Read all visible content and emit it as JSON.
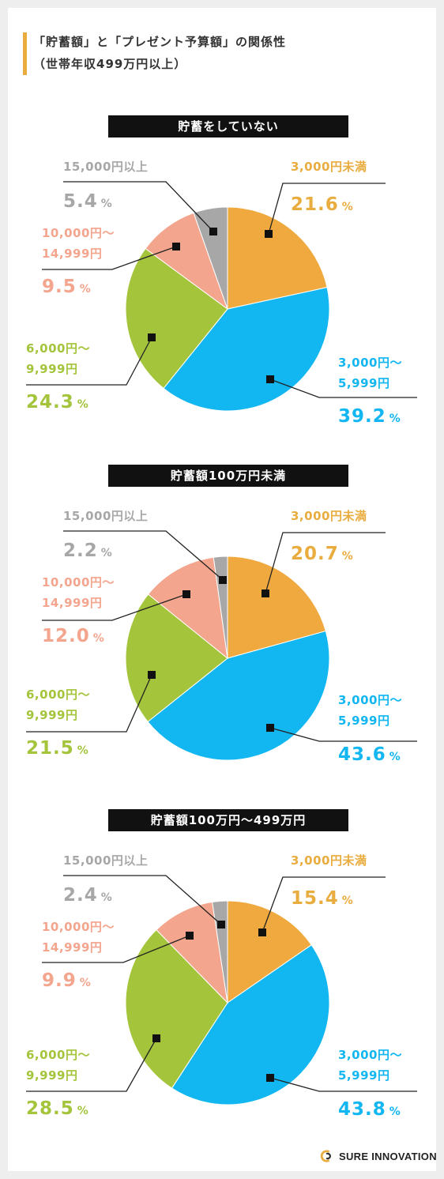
{
  "header": {
    "title_line1": "「貯蓄額」と「プレゼント予算額」の関係性",
    "title_line2": "（世帯年収499万円以上）"
  },
  "colors": {
    "accent": "#e9ac3f",
    "slice_under3000": "#efa93e",
    "slice_3000_5999": "#12b6f0",
    "slice_6000_9999": "#a4c43c",
    "slice_10000_14999": "#f3a58d",
    "slice_15000_plus": "#a7a7a7"
  },
  "chart_data": [
    {
      "type": "pie",
      "title": "貯蓄をしていない",
      "categories": [
        "3,000円未満",
        "3,000円〜5,999円",
        "6,000円〜9,999円",
        "10,000円〜14,999円",
        "15,000円以上"
      ],
      "values": [
        21.6,
        39.2,
        24.3,
        9.5,
        5.4
      ],
      "value_labels": [
        "21.6",
        "39.2",
        "24.3",
        "9.5",
        "5.4"
      ],
      "unit": "%"
    },
    {
      "type": "pie",
      "title": "貯蓄額100万円未満",
      "categories": [
        "3,000円未満",
        "3,000円〜5,999円",
        "6,000円〜9,999円",
        "10,000円〜14,999円",
        "15,000円以上"
      ],
      "values": [
        20.7,
        43.6,
        21.5,
        12.0,
        2.2
      ],
      "value_labels": [
        "20.7",
        "43.6",
        "21.5",
        "12.0",
        "2.2"
      ],
      "unit": "%"
    },
    {
      "type": "pie",
      "title": "貯蓄額100万円〜499万円",
      "categories": [
        "3,000円未満",
        "3,000円〜5,999円",
        "6,000円〜9,999円",
        "10,000円〜14,999円",
        "15,000円以上"
      ],
      "values": [
        15.4,
        43.8,
        28.5,
        9.9,
        2.4
      ],
      "value_labels": [
        "15.4",
        "43.8",
        "28.5",
        "9.9",
        "2.4"
      ],
      "unit": "%"
    }
  ],
  "labels": {
    "cat0": [
      "3,000円未満"
    ],
    "cat1": [
      "3,000円〜",
      "5,999円"
    ],
    "cat2": [
      "6,000円〜",
      "9,999円"
    ],
    "cat3": [
      "10,000円〜",
      "14,999円"
    ],
    "cat4": [
      "15,000円以上"
    ]
  },
  "footer": {
    "logo_text": "SURE INNOVATION",
    "logo_icon": "sure-innovation-logo-icon"
  }
}
